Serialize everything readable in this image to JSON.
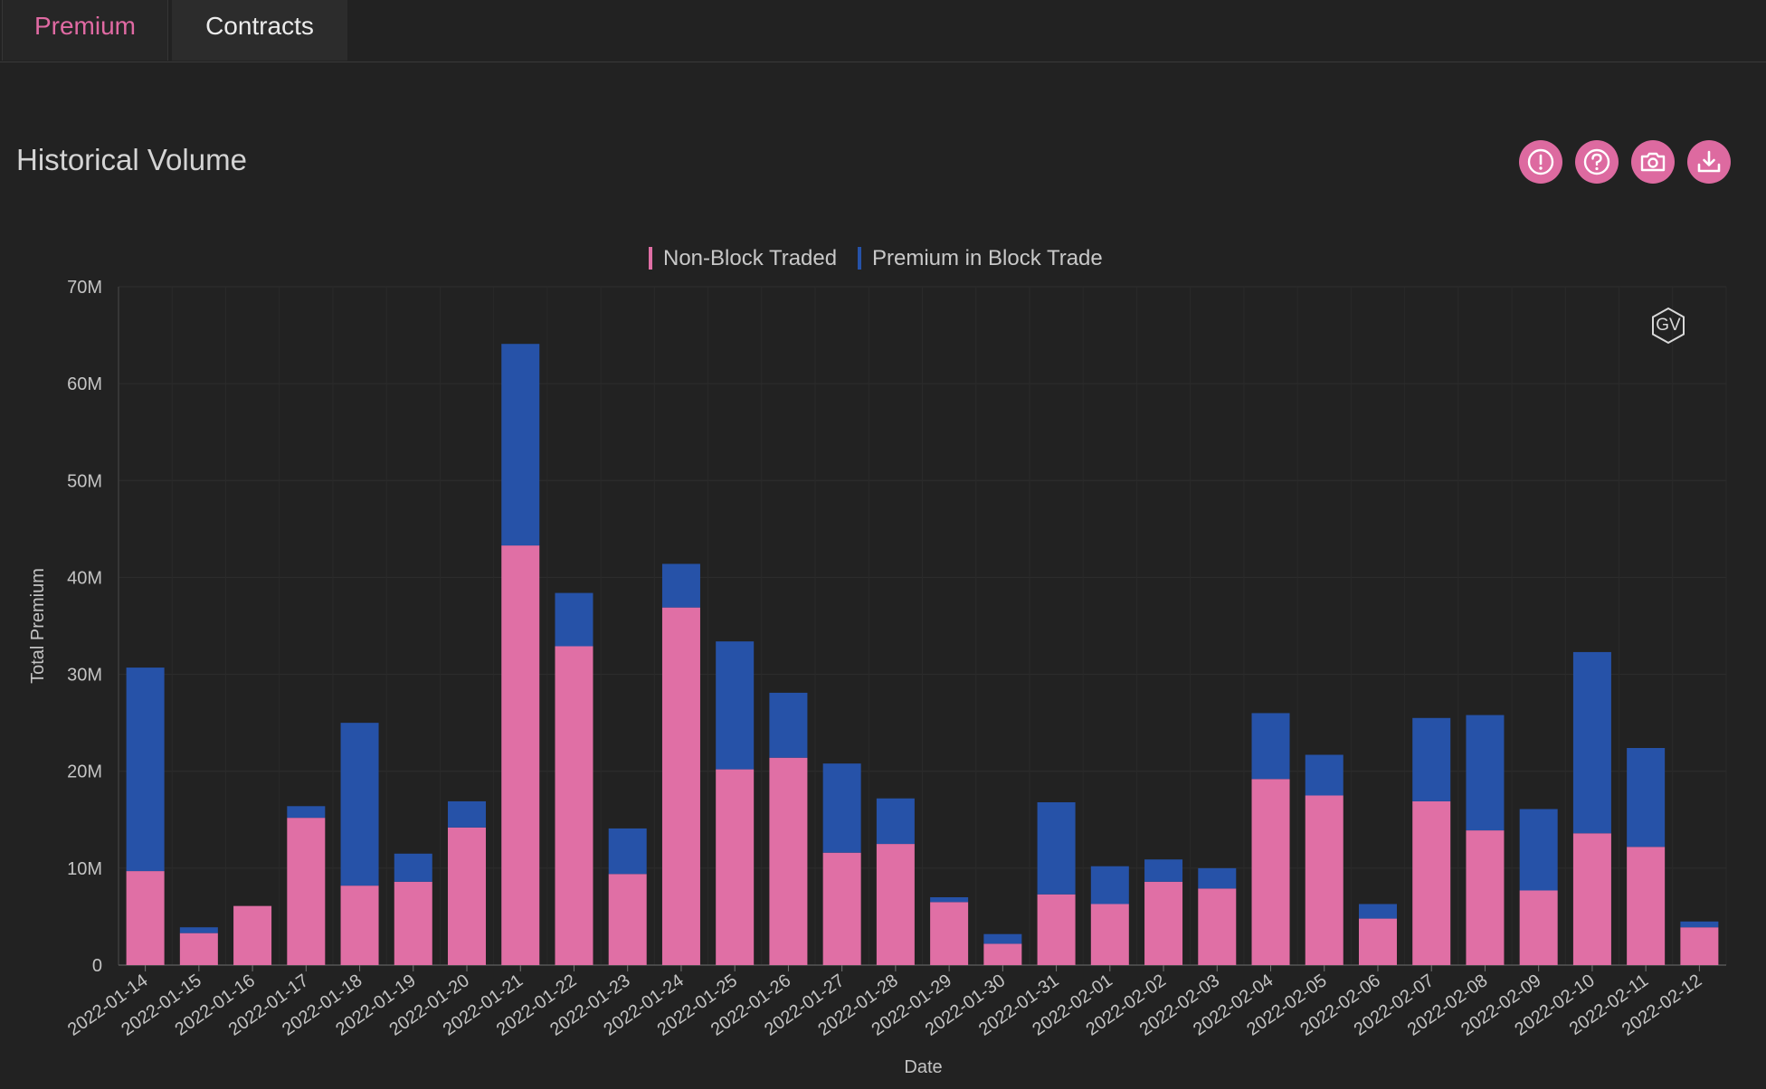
{
  "tabs": [
    {
      "label": "Premium",
      "active": true
    },
    {
      "label": "Contracts",
      "active": false
    }
  ],
  "header": {
    "title": "Historical Volume",
    "tools": [
      {
        "icon": "alert-icon"
      },
      {
        "icon": "help-icon"
      },
      {
        "icon": "camera-icon"
      },
      {
        "icon": "download-icon"
      }
    ]
  },
  "colors": {
    "accent": "#e06aa3",
    "non_block": "#e06fa5",
    "block": "#2652a8"
  },
  "watermark": {
    "text": "GV"
  },
  "chart_data": {
    "type": "bar",
    "stacked": true,
    "xlabel": "Date",
    "ylabel": "Total Premium",
    "ylim": [
      0,
      70000000
    ],
    "yticks": [
      {
        "value": 0,
        "label": "0"
      },
      {
        "value": 10000000,
        "label": "10M"
      },
      {
        "value": 20000000,
        "label": "20M"
      },
      {
        "value": 30000000,
        "label": "30M"
      },
      {
        "value": 40000000,
        "label": "40M"
      },
      {
        "value": 50000000,
        "label": "50M"
      },
      {
        "value": 60000000,
        "label": "60M"
      },
      {
        "value": 70000000,
        "label": "70M"
      }
    ],
    "grid": true,
    "legend_position": "top-center",
    "categories": [
      "2022-01-14",
      "2022-01-15",
      "2022-01-16",
      "2022-01-17",
      "2022-01-18",
      "2022-01-19",
      "2022-01-20",
      "2022-01-21",
      "2022-01-22",
      "2022-01-23",
      "2022-01-24",
      "2022-01-25",
      "2022-01-26",
      "2022-01-27",
      "2022-01-28",
      "2022-01-29",
      "2022-01-30",
      "2022-01-31",
      "2022-02-01",
      "2022-02-02",
      "2022-02-03",
      "2022-02-04",
      "2022-02-05",
      "2022-02-06",
      "2022-02-07",
      "2022-02-08",
      "2022-02-09",
      "2022-02-10",
      "2022-02-11",
      "2022-02-12"
    ],
    "series": [
      {
        "name": "Non-Block Traded",
        "color": "#e06fa5",
        "values": [
          9700000,
          3300000,
          6100000,
          15200000,
          8200000,
          8600000,
          14200000,
          43300000,
          32900000,
          9400000,
          36900000,
          20200000,
          21400000,
          11600000,
          12500000,
          6500000,
          2200000,
          7300000,
          6300000,
          8600000,
          7900000,
          19200000,
          17500000,
          4800000,
          16900000,
          13900000,
          7700000,
          13600000,
          12200000,
          3900000
        ]
      },
      {
        "name": "Premium in Block Trade",
        "color": "#2652a8",
        "values": [
          21000000,
          600000,
          0,
          1200000,
          16800000,
          2900000,
          2700000,
          20800000,
          5500000,
          4700000,
          4500000,
          13200000,
          6700000,
          9200000,
          4700000,
          500000,
          1000000,
          9500000,
          3900000,
          2300000,
          2100000,
          6800000,
          4200000,
          1500000,
          8600000,
          11900000,
          8400000,
          18700000,
          10200000,
          600000
        ]
      }
    ]
  }
}
